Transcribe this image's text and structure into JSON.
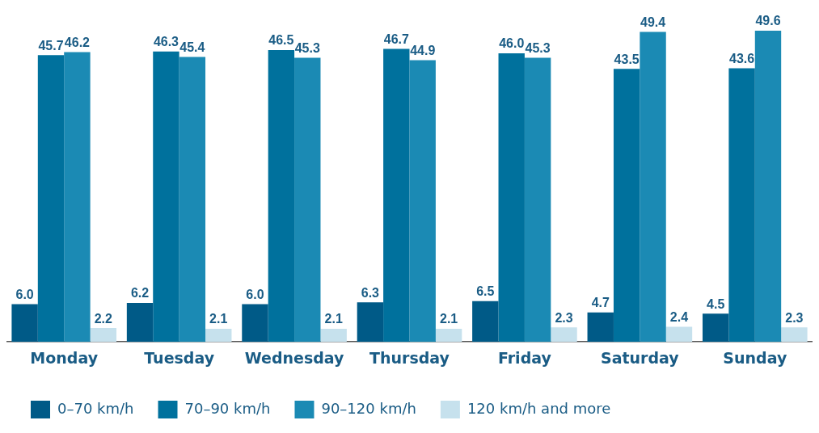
{
  "chart_data": {
    "type": "bar",
    "categories": [
      "Monday",
      "Tuesday",
      "Wednesday",
      "Thursday",
      "Friday",
      "Saturday",
      "Sunday"
    ],
    "series": [
      {
        "name": "0–70 km/h",
        "color": "#005a87",
        "values": [
          6.0,
          6.2,
          6.0,
          6.3,
          6.5,
          4.7,
          4.5
        ],
        "value_labels": [
          "6.0",
          "6.2",
          "6.0",
          "6.3",
          "6.5",
          "4.7",
          "4.5"
        ]
      },
      {
        "name": "70–90 km/h",
        "color": "#00719d",
        "values": [
          45.7,
          46.3,
          46.5,
          46.7,
          46.0,
          43.5,
          43.6
        ],
        "value_labels": [
          "45.7",
          "46.3",
          "46.5",
          "46.7",
          "46.0",
          "43.5",
          "43.6"
        ]
      },
      {
        "name": "90–120 km/h",
        "color": "#1b8ab4",
        "values": [
          46.2,
          45.4,
          45.3,
          44.9,
          45.3,
          49.4,
          49.6
        ],
        "value_labels": [
          "46.2",
          "45.4",
          "45.3",
          "44.9",
          "45.3",
          "49.4",
          "49.6"
        ]
      },
      {
        "name": "120 km/h and more",
        "color": "#c6e1ed",
        "values": [
          2.2,
          2.1,
          2.1,
          2.1,
          2.3,
          2.4,
          2.3
        ],
        "value_labels": [
          "2.2",
          "2.1",
          "2.1",
          "2.1",
          "2.3",
          "2.4",
          "2.3"
        ]
      }
    ],
    "grid": false,
    "legend": "bottom left"
  }
}
